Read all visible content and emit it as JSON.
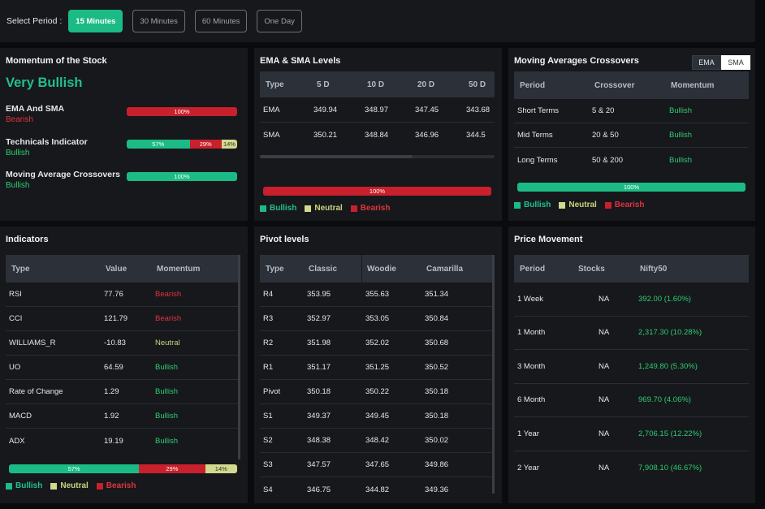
{
  "period": {
    "label": "Select Period :",
    "options": [
      "15 Minutes",
      "30 Minutes",
      "60 Minutes",
      "One Day"
    ],
    "selected": "15 Minutes"
  },
  "momentum": {
    "title": "Momentum of the Stock",
    "overall": "Very Bullish",
    "items": [
      {
        "name": "EMA And SMA",
        "status": "Bearish",
        "bars": [
          {
            "kind": "bearish",
            "pct": 100,
            "label": "100%"
          }
        ]
      },
      {
        "name": "Technicals Indicator",
        "status": "Bullish",
        "bars": [
          {
            "kind": "bullish",
            "pct": 57,
            "label": "57%"
          },
          {
            "kind": "bearish",
            "pct": 29,
            "label": "29%"
          },
          {
            "kind": "neutral",
            "pct": 14,
            "label": "14%"
          }
        ]
      },
      {
        "name": "Moving Average Crossovers",
        "status": "Bullish",
        "bars": [
          {
            "kind": "bullish",
            "pct": 100,
            "label": "100%"
          }
        ]
      }
    ]
  },
  "ema_sma": {
    "title": "EMA & SMA Levels",
    "headers": [
      "Type",
      "5 D",
      "10 D",
      "20 D",
      "50 D"
    ],
    "rows": [
      [
        "EMA",
        "349.94",
        "348.97",
        "347.45",
        "343.68"
      ],
      [
        "SMA",
        "350.21",
        "348.84",
        "346.96",
        "344.5"
      ]
    ],
    "summary_bar": {
      "pct": 100,
      "label": "100%",
      "kind": "bearish"
    }
  },
  "crossovers": {
    "title": "Moving Averages Crossovers",
    "toggle": [
      "EMA",
      "SMA"
    ],
    "toggle_active": "EMA",
    "headers": [
      "Period",
      "Crossover",
      "Momentum"
    ],
    "rows": [
      [
        "Short Terms",
        "5 & 20",
        "Bullish"
      ],
      [
        "Mid Terms",
        "20 & 50",
        "Bullish"
      ],
      [
        "Long Terms",
        "50 & 200",
        "Bullish"
      ]
    ],
    "summary_bar": {
      "pct": 100,
      "label": "100%",
      "kind": "bullish"
    }
  },
  "legend": {
    "bullish": "Bullish",
    "neutral": "Neutral",
    "bearish": "Bearish"
  },
  "indicators": {
    "title": "Indicators",
    "headers": [
      "Type",
      "Value",
      "Momentum"
    ],
    "rows": [
      [
        "RSI",
        "77.76",
        "Bearish"
      ],
      [
        "CCI",
        "121.79",
        "Bearish"
      ],
      [
        "WILLIAMS_R",
        "-10.83",
        "Neutral"
      ],
      [
        "UO",
        "64.59",
        "Bullish"
      ],
      [
        "Rate of Change",
        "1.29",
        "Bullish"
      ],
      [
        "MACD",
        "1.92",
        "Bullish"
      ],
      [
        "ADX",
        "19.19",
        "Bullish"
      ]
    ],
    "summary": [
      {
        "kind": "bullish",
        "pct": 57,
        "label": "57%"
      },
      {
        "kind": "bearish",
        "pct": 29,
        "label": "29%"
      },
      {
        "kind": "neutral",
        "pct": 14,
        "label": "14%"
      }
    ]
  },
  "pivot": {
    "title": "Pivot levels",
    "headers": [
      "Type",
      "Classic",
      "Woodie",
      "Camarilla"
    ],
    "rows": [
      [
        "R4",
        "353.95",
        "355.63",
        "351.34"
      ],
      [
        "R3",
        "352.97",
        "353.05",
        "350.84"
      ],
      [
        "R2",
        "351.98",
        "352.02",
        "350.68"
      ],
      [
        "R1",
        "351.17",
        "351.25",
        "350.52"
      ],
      [
        "Pivot",
        "350.18",
        "350.22",
        "350.18"
      ],
      [
        "S1",
        "349.37",
        "349.45",
        "350.18"
      ],
      [
        "S2",
        "348.38",
        "348.42",
        "350.02"
      ],
      [
        "S3",
        "347.57",
        "347.65",
        "349.86"
      ],
      [
        "S4",
        "346.75",
        "344.82",
        "349.36"
      ]
    ]
  },
  "price_movement": {
    "title": "Price Movement",
    "headers": [
      "Period",
      "Stocks",
      "Nifty50"
    ],
    "rows": [
      [
        "1 Week",
        "NA",
        "392.00 (1.60%)"
      ],
      [
        "1 Month",
        "NA",
        "2,317.30 (10.28%)"
      ],
      [
        "3 Month",
        "NA",
        "1,249.80 (5.30%)"
      ],
      [
        "6 Month",
        "NA",
        "969.70 (4.06%)"
      ],
      [
        "1 Year",
        "NA",
        "2,706.15 (12.22%)"
      ],
      [
        "2 Year",
        "NA",
        "7,908.10 (46.67%)"
      ]
    ]
  }
}
